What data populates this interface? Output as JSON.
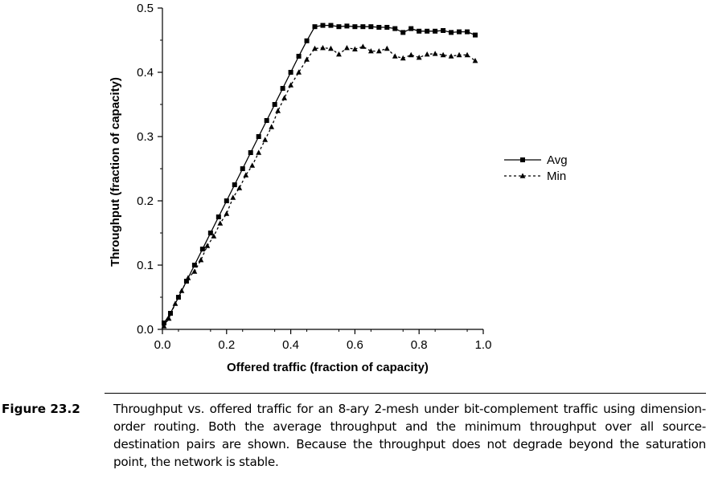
{
  "chart_data": {
    "type": "line",
    "title": "",
    "xlabel": "Offered traffic (fraction of capacity)",
    "ylabel": "Throughput (fraction of capacity)",
    "xlim": [
      0.0,
      1.0
    ],
    "ylim": [
      0.0,
      0.5
    ],
    "grid": false,
    "legend_position": "right",
    "x_ticks": [
      0.0,
      0.2,
      0.4,
      0.6,
      0.8,
      1.0
    ],
    "x_tick_labels": [
      "0.0",
      "0.2",
      "0.4",
      "0.6",
      "0.8",
      "1.0"
    ],
    "y_ticks": [
      0.0,
      0.1,
      0.2,
      0.3,
      0.4,
      0.5
    ],
    "y_tick_labels": [
      "0.0",
      "0.1",
      "0.2",
      "0.3",
      "0.4",
      "0.5"
    ],
    "series": [
      {
        "name": "Avg",
        "line_style": "solid",
        "marker": "square",
        "x": [
          0.005,
          0.025,
          0.05,
          0.075,
          0.1,
          0.125,
          0.15,
          0.175,
          0.2,
          0.225,
          0.25,
          0.275,
          0.3,
          0.325,
          0.35,
          0.375,
          0.4,
          0.425,
          0.45,
          0.475,
          0.5,
          0.525,
          0.55,
          0.575,
          0.6,
          0.625,
          0.65,
          0.675,
          0.7,
          0.725,
          0.75,
          0.775,
          0.8,
          0.825,
          0.85,
          0.875,
          0.9,
          0.925,
          0.95,
          0.975
        ],
        "y": [
          0.01,
          0.025,
          0.05,
          0.075,
          0.1,
          0.125,
          0.15,
          0.175,
          0.2,
          0.225,
          0.25,
          0.275,
          0.3,
          0.325,
          0.35,
          0.375,
          0.4,
          0.425,
          0.449,
          0.471,
          0.473,
          0.473,
          0.471,
          0.472,
          0.471,
          0.471,
          0.471,
          0.47,
          0.47,
          0.468,
          0.462,
          0.468,
          0.464,
          0.464,
          0.464,
          0.465,
          0.462,
          0.463,
          0.463,
          0.458
        ]
      },
      {
        "name": "Min",
        "line_style": "dashed",
        "marker": "triangle",
        "x": [
          0.005,
          0.02,
          0.04,
          0.06,
          0.08,
          0.1,
          0.12,
          0.14,
          0.16,
          0.18,
          0.2,
          0.22,
          0.24,
          0.26,
          0.28,
          0.3,
          0.32,
          0.34,
          0.36,
          0.38,
          0.4,
          0.425,
          0.45,
          0.475,
          0.5,
          0.525,
          0.55,
          0.575,
          0.6,
          0.625,
          0.65,
          0.675,
          0.7,
          0.725,
          0.75,
          0.775,
          0.8,
          0.825,
          0.85,
          0.875,
          0.9,
          0.925,
          0.95,
          0.975
        ],
        "y": [
          0.005,
          0.017,
          0.04,
          0.06,
          0.08,
          0.09,
          0.108,
          0.13,
          0.145,
          0.165,
          0.18,
          0.205,
          0.22,
          0.24,
          0.255,
          0.275,
          0.295,
          0.315,
          0.34,
          0.36,
          0.38,
          0.4,
          0.42,
          0.437,
          0.438,
          0.437,
          0.428,
          0.438,
          0.436,
          0.44,
          0.433,
          0.433,
          0.437,
          0.425,
          0.422,
          0.427,
          0.423,
          0.428,
          0.429,
          0.427,
          0.425,
          0.427,
          0.427,
          0.418
        ]
      }
    ]
  },
  "caption": {
    "label": "Figure 23.2",
    "text": "Throughput vs. offered traffic for an 8-ary 2-mesh under bit-complement traffic using dimension-order routing. Both the average throughput and the minimum throughput over all source-destination pairs are shown. Because the throughput does not degrade beyond the saturation point, the network is stable."
  }
}
